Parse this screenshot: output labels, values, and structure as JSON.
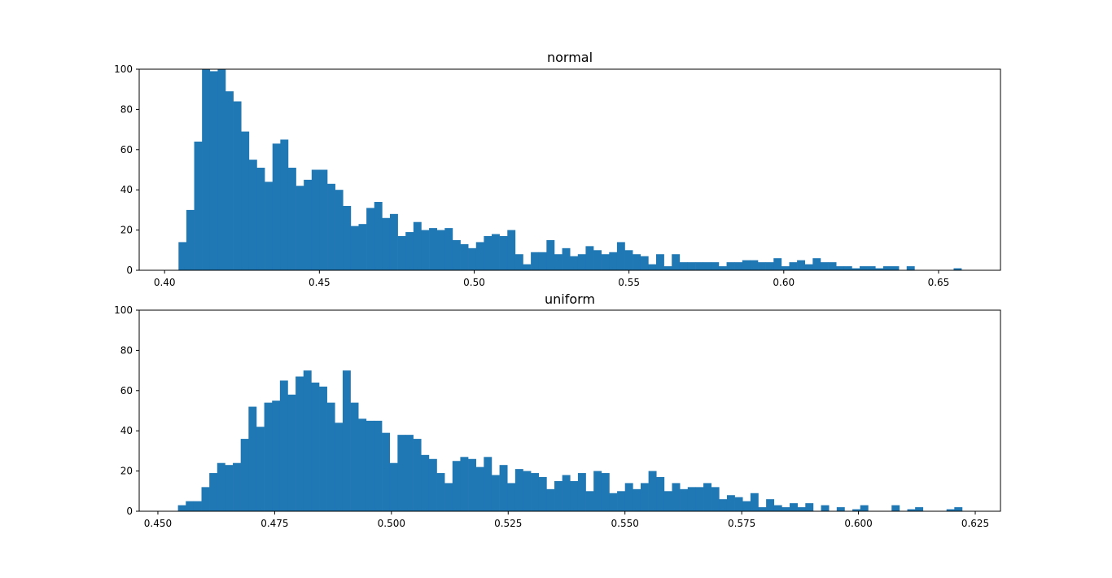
{
  "chart_data": [
    {
      "type": "bar",
      "subtype": "histogram",
      "title": "normal",
      "xlabel": "",
      "ylabel": "",
      "bin_range": [
        0.4045,
        0.6574
      ],
      "xlim": [
        0.3918,
        0.67
      ],
      "ylim": [
        0,
        100
      ],
      "xticks": [
        0.4,
        0.45,
        0.5,
        0.55,
        0.6,
        0.65
      ],
      "xtick_labels": [
        "0.40",
        "0.45",
        "0.50",
        "0.55",
        "0.60",
        "0.65"
      ],
      "yticks": [
        0,
        20,
        40,
        60,
        80,
        100
      ],
      "ytick_labels": [
        "0",
        "20",
        "40",
        "60",
        "80",
        "100"
      ],
      "color": "#1f77b4",
      "values": [
        14,
        30,
        64,
        100,
        99,
        100,
        89,
        84,
        69,
        55,
        51,
        44,
        63,
        65,
        51,
        42,
        45,
        50,
        50,
        43,
        40,
        32,
        22,
        23,
        31,
        34,
        26,
        28,
        17,
        19,
        24,
        20,
        21,
        20,
        21,
        15,
        13,
        11,
        14,
        17,
        18,
        17,
        20,
        8,
        3,
        9,
        9,
        15,
        8,
        11,
        7,
        8,
        12,
        10,
        8,
        9,
        14,
        10,
        8,
        7,
        3,
        8,
        2,
        8,
        4,
        4,
        4,
        4,
        4,
        2,
        4,
        4,
        5,
        5,
        4,
        4,
        6,
        2,
        4,
        5,
        3,
        6,
        4,
        4,
        2,
        2,
        1,
        2,
        2,
        1,
        2,
        2,
        0,
        2,
        0,
        0,
        0,
        0,
        0,
        1
      ]
    },
    {
      "type": "bar",
      "subtype": "histogram",
      "title": "uniform",
      "xlabel": "",
      "ylabel": "",
      "bin_range": [
        0.4543,
        0.6222
      ],
      "xlim": [
        0.446,
        0.6304
      ],
      "ylim": [
        0,
        100
      ],
      "xticks": [
        0.45,
        0.475,
        0.5,
        0.525,
        0.55,
        0.575,
        0.6,
        0.625
      ],
      "xtick_labels": [
        "0.450",
        "0.475",
        "0.500",
        "0.525",
        "0.550",
        "0.575",
        "0.600",
        "0.625"
      ],
      "yticks": [
        0,
        20,
        40,
        60,
        80,
        100
      ],
      "ytick_labels": [
        "0",
        "20",
        "40",
        "60",
        "80",
        "100"
      ],
      "color": "#1f77b4",
      "values": [
        3,
        5,
        5,
        12,
        19,
        24,
        23,
        24,
        36,
        52,
        42,
        54,
        55,
        65,
        58,
        67,
        70,
        64,
        62,
        54,
        44,
        70,
        54,
        46,
        45,
        45,
        39,
        24,
        38,
        38,
        36,
        28,
        26,
        19,
        14,
        25,
        27,
        26,
        22,
        27,
        18,
        23,
        14,
        21,
        20,
        19,
        17,
        11,
        15,
        18,
        15,
        19,
        10,
        20,
        19,
        9,
        10,
        14,
        11,
        14,
        20,
        17,
        10,
        14,
        11,
        12,
        12,
        14,
        12,
        6,
        8,
        7,
        5,
        9,
        2,
        6,
        3,
        2,
        4,
        2,
        4,
        0,
        3,
        0,
        2,
        0,
        1,
        3,
        0,
        0,
        0,
        3,
        0,
        1,
        2,
        0,
        0,
        0,
        1,
        2
      ]
    }
  ]
}
